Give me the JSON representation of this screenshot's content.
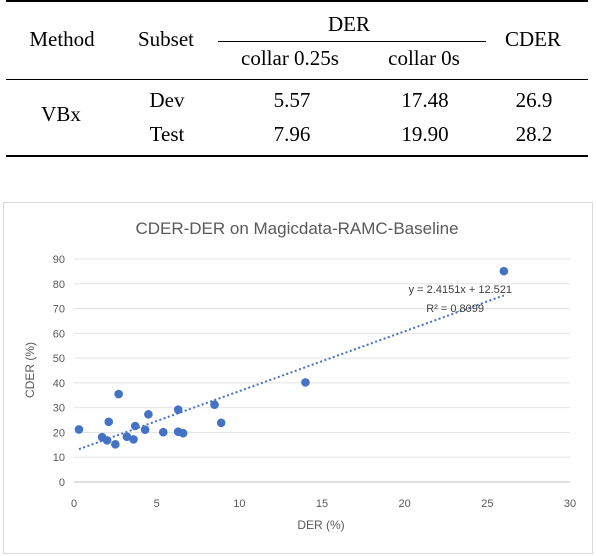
{
  "table": {
    "headers": {
      "method": "Method",
      "subset": "Subset",
      "der": "DER",
      "collar1": "collar 0.25s",
      "collar2": "collar 0s",
      "cder": "CDER"
    },
    "method": "VBx",
    "rows": [
      {
        "subset": "Dev",
        "der_025": "5.57",
        "der_0": "17.48",
        "cder": "26.9"
      },
      {
        "subset": "Test",
        "der_025": "7.96",
        "der_0": "19.90",
        "cder": "28.2"
      }
    ]
  },
  "chart_data": {
    "type": "scatter",
    "title": "CDER-DER  on Magicdata-RAMC-Baseline",
    "xlabel": "DER (%)",
    "ylabel": "CDER (%)",
    "xlim": [
      0,
      30
    ],
    "ylim": [
      0,
      90
    ],
    "xticks": [
      0,
      5,
      10,
      15,
      20,
      25,
      30
    ],
    "yticks": [
      0,
      10,
      20,
      30,
      40,
      50,
      60,
      70,
      80,
      90
    ],
    "grid": "horizontal",
    "marker_color": "#4472c4",
    "trendline": {
      "slope": 2.4151,
      "intercept": 12.521,
      "equation": "y = 2.4151x + 12.521",
      "r2": "R² = 0.8099",
      "color": "#4472c4"
    },
    "points": [
      [
        0.3,
        21.2
      ],
      [
        1.7,
        18.1
      ],
      [
        2.0,
        16.8
      ],
      [
        2.1,
        24.3
      ],
      [
        2.5,
        15.2
      ],
      [
        2.7,
        35.5
      ],
      [
        3.2,
        18.3
      ],
      [
        3.6,
        17.2
      ],
      [
        3.7,
        22.6
      ],
      [
        4.3,
        21.1
      ],
      [
        4.5,
        27.3
      ],
      [
        5.4,
        20.1
      ],
      [
        6.3,
        29.2
      ],
      [
        6.3,
        20.3
      ],
      [
        6.6,
        19.7
      ],
      [
        8.5,
        31.2
      ],
      [
        8.9,
        23.9
      ],
      [
        14.0,
        40.2
      ],
      [
        26.0,
        85.1
      ]
    ]
  }
}
